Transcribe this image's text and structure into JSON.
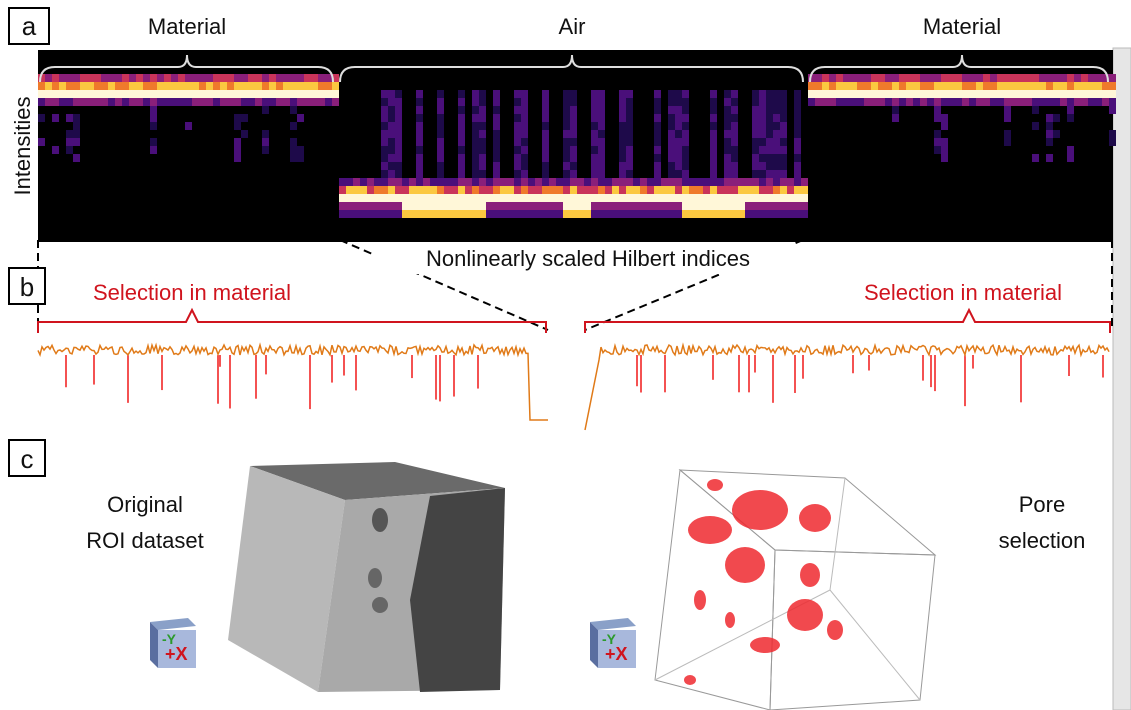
{
  "panel_a": {
    "label": "a",
    "regions": [
      "Material",
      "Air",
      "Material"
    ],
    "y_label": "Intensities",
    "x_label": "Nonlinearly scaled Hilbert indices"
  },
  "panel_b": {
    "label": "b",
    "selections": [
      "Selection in material",
      "Selection in material"
    ]
  },
  "panel_c": {
    "label": "c",
    "left_caption": [
      "Original",
      "ROI dataset"
    ],
    "right_caption": [
      "Pore",
      "selection"
    ],
    "axis_labels": [
      "-Y",
      "+X"
    ]
  }
}
